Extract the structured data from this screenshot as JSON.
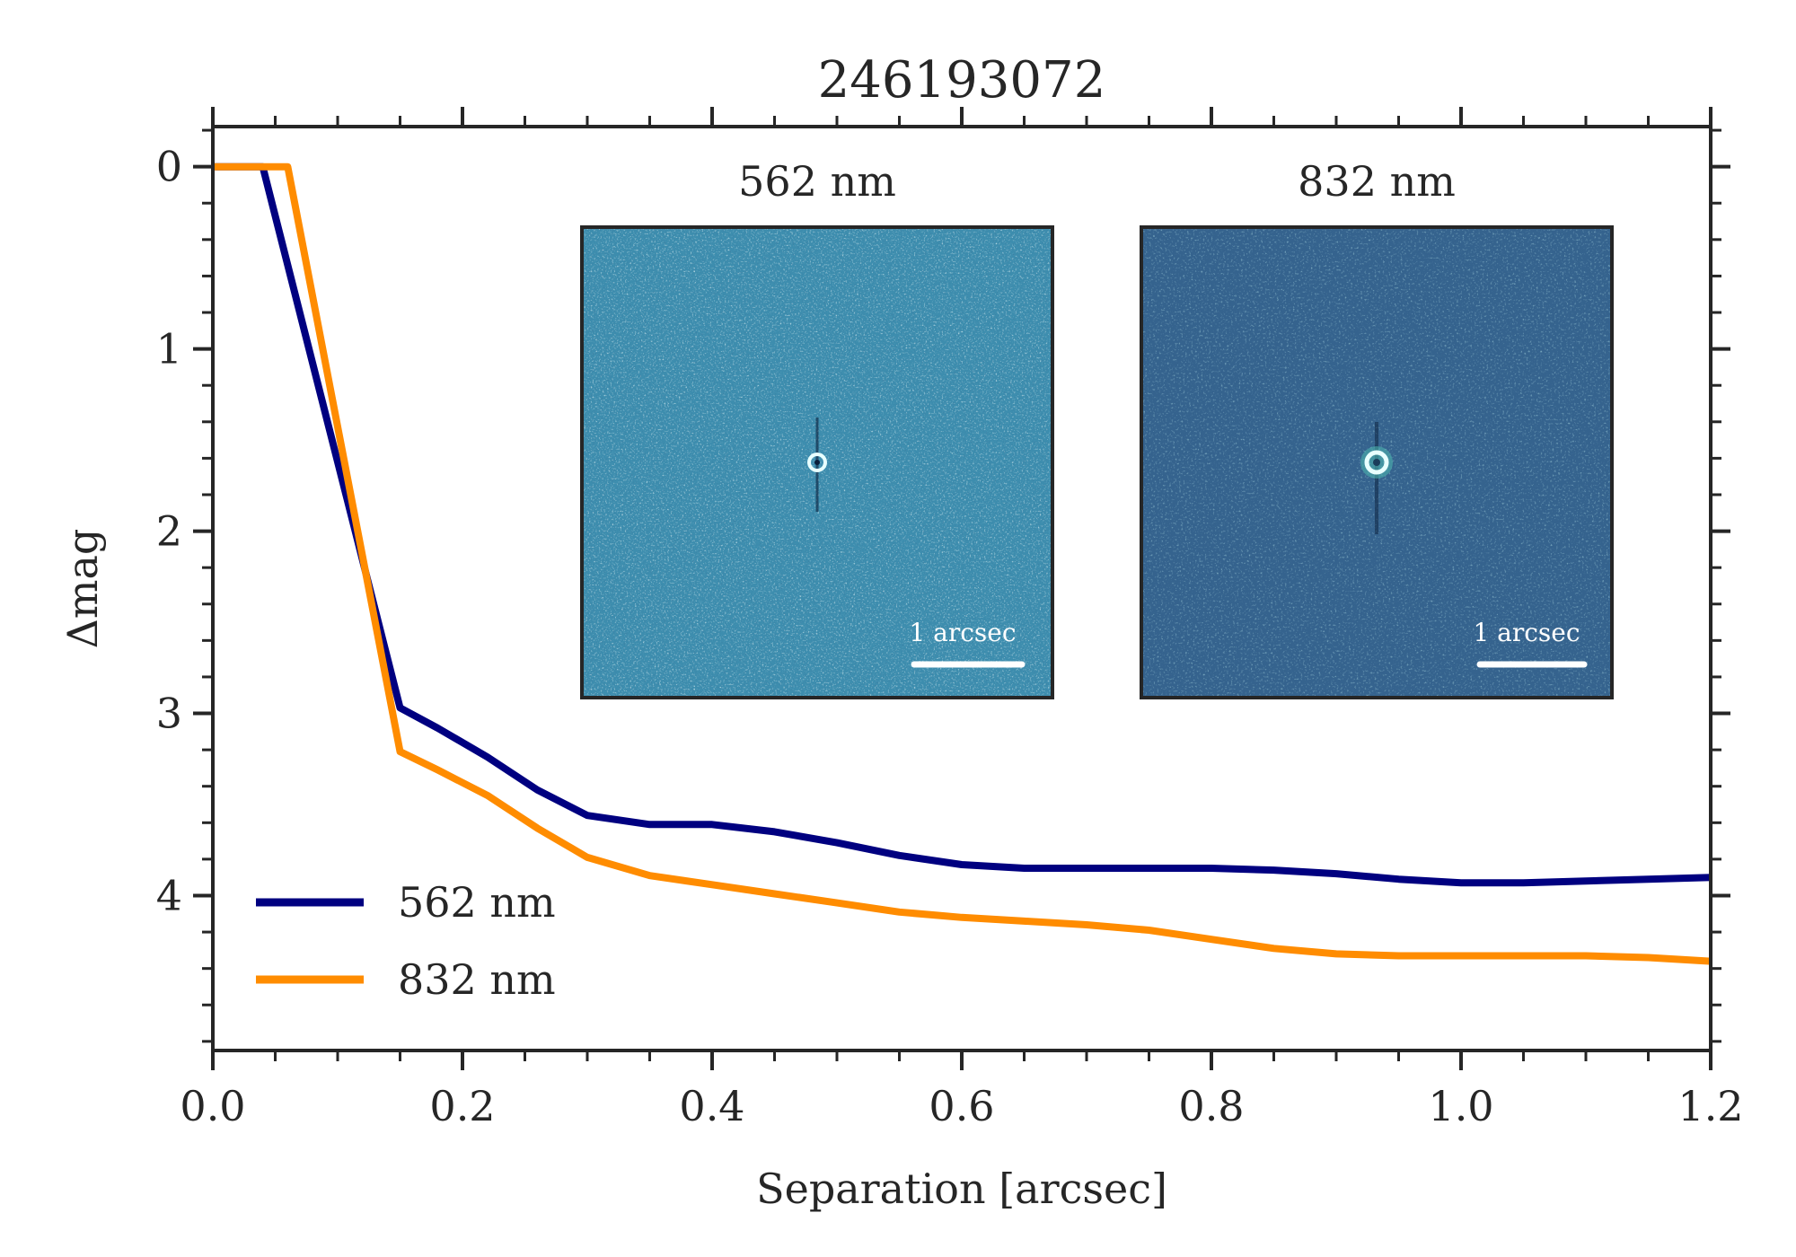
{
  "chart_data": {
    "type": "line",
    "title": "246193072",
    "xlabel": "Separation [arcsec]",
    "ylabel": "Δmag",
    "xlim": [
      0.0,
      1.2
    ],
    "ylim": [
      4.85,
      -0.22
    ],
    "y_inverted": true,
    "grid": false,
    "legend_position": "lower-left",
    "x_ticks": [
      0.0,
      0.2,
      0.4,
      0.6,
      0.8,
      1.0,
      1.2
    ],
    "x_tick_labels": [
      "0.0",
      "0.2",
      "0.4",
      "0.6",
      "0.8",
      "1.0",
      "1.2"
    ],
    "y_ticks": [
      0,
      1,
      2,
      3,
      4
    ],
    "y_tick_labels": [
      "0",
      "1",
      "2",
      "3",
      "4"
    ],
    "series": [
      {
        "name": "562 nm",
        "color": "#000080",
        "x": [
          0.0,
          0.04,
          0.15,
          0.18,
          0.22,
          0.26,
          0.3,
          0.35,
          0.4,
          0.45,
          0.5,
          0.55,
          0.6,
          0.65,
          0.7,
          0.75,
          0.8,
          0.85,
          0.9,
          0.95,
          1.0,
          1.05,
          1.1,
          1.15,
          1.2
        ],
        "y": [
          0.0,
          0.0,
          2.97,
          3.08,
          3.24,
          3.42,
          3.56,
          3.61,
          3.61,
          3.65,
          3.71,
          3.78,
          3.83,
          3.85,
          3.85,
          3.85,
          3.85,
          3.86,
          3.88,
          3.91,
          3.93,
          3.93,
          3.92,
          3.91,
          3.9
        ]
      },
      {
        "name": "832 nm",
        "color": "#ff8c00",
        "x": [
          0.0,
          0.06,
          0.15,
          0.18,
          0.22,
          0.26,
          0.3,
          0.35,
          0.4,
          0.45,
          0.5,
          0.55,
          0.6,
          0.65,
          0.7,
          0.75,
          0.8,
          0.85,
          0.9,
          0.95,
          1.0,
          1.05,
          1.1,
          1.15,
          1.2
        ],
        "y": [
          0.0,
          0.0,
          3.21,
          3.31,
          3.45,
          3.63,
          3.79,
          3.89,
          3.94,
          3.99,
          4.04,
          4.09,
          4.12,
          4.14,
          4.16,
          4.19,
          4.24,
          4.29,
          4.32,
          4.33,
          4.33,
          4.33,
          4.33,
          4.34,
          4.36
        ]
      }
    ],
    "insets": [
      {
        "title": "562 nm",
        "scale_label": "1 arcsec",
        "background": "#3d8dae"
      },
      {
        "title": "832 nm",
        "scale_label": "1 arcsec",
        "background": "#35638e"
      }
    ]
  }
}
